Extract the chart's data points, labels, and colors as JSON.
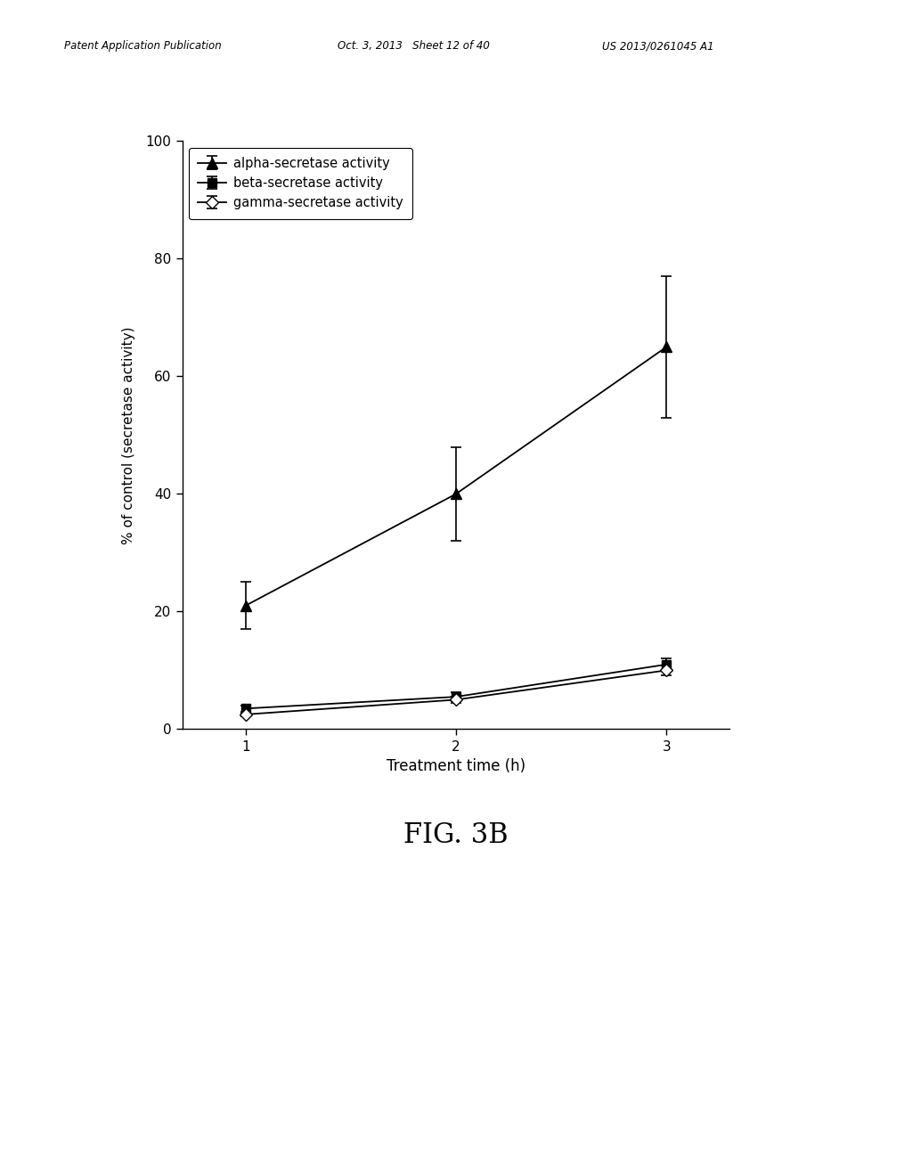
{
  "x": [
    1,
    2,
    3
  ],
  "alpha": [
    21,
    40,
    65
  ],
  "alpha_err": [
    4,
    8,
    12
  ],
  "beta": [
    3.5,
    5.5,
    11
  ],
  "beta_err": [
    0.5,
    0.8,
    1.0
  ],
  "gamma": [
    2.5,
    5.0,
    10
  ],
  "gamma_err": [
    0.3,
    0.5,
    0.8
  ],
  "xlabel": "Treatment time (h)",
  "ylabel": "% of control (secretase activity)",
  "ylim": [
    0,
    100
  ],
  "xlim": [
    0.7,
    3.3
  ],
  "xticks": [
    1,
    2,
    3
  ],
  "yticks": [
    0,
    20,
    40,
    60,
    80,
    100
  ],
  "legend_alpha": "alpha-secretase activity",
  "legend_beta": "beta-secretase activity",
  "legend_gamma": "gamma-secretase activity",
  "fig_caption": "FIG. 3B",
  "header_left": "Patent Application Publication",
  "header_center": "Oct. 3, 2013   Sheet 12 of 40",
  "header_right": "US 2013/0261045 A1",
  "bg_color": "#ffffff"
}
